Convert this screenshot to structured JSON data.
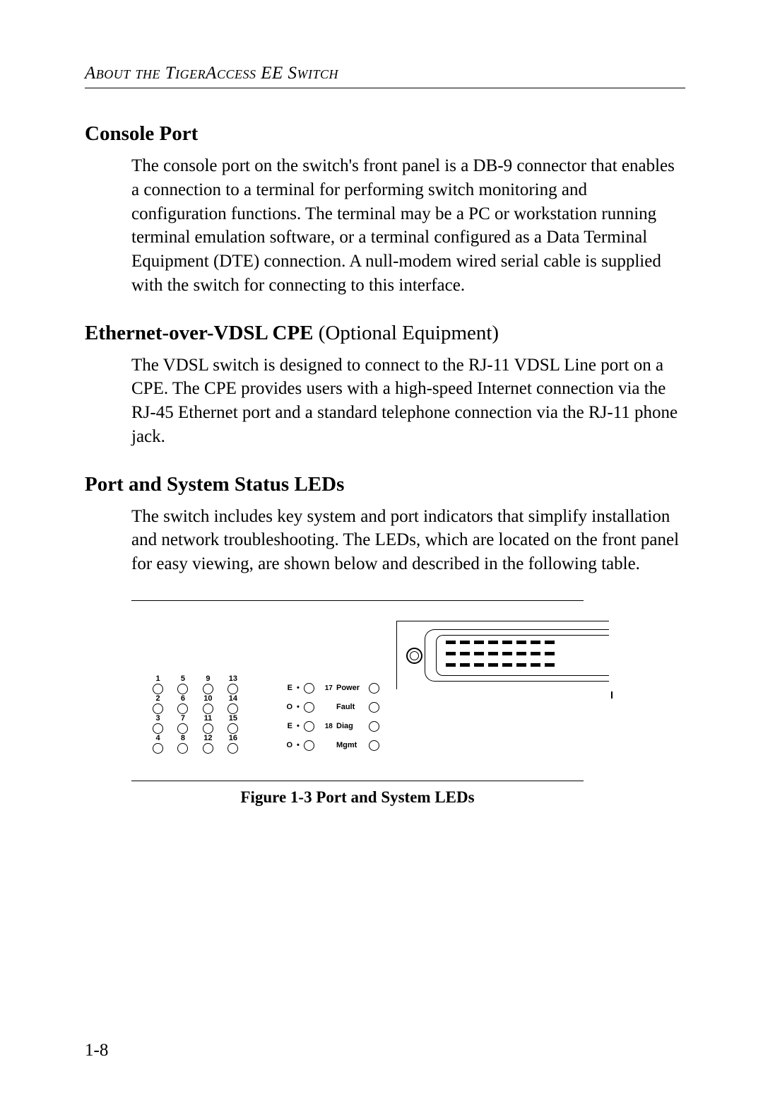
{
  "page": {
    "running_head": "About the TigerAccess EE Switch",
    "page_number": "1-8"
  },
  "sections": {
    "console": {
      "heading": "Console Port",
      "body": "The console port on the switch's front panel is a DB-9 connector that enables a connection to a terminal for performing switch monitoring and configuration functions. The terminal may be a PC or workstation running terminal emulation software, or a terminal configured as a Data Terminal Equipment (DTE) connection. A null-modem wired serial cable is supplied with the switch for connecting to this interface."
    },
    "cpe": {
      "heading_bold": "Ethernet-over-VDSL CPE",
      "heading_rest": " (Optional Equipment)",
      "body": "The VDSL switch is designed to connect to the RJ-11 VDSL Line port on a CPE. The CPE provides users with a high-speed Internet connection via the RJ-45 Ethernet port and a standard telephone connection via the RJ-11 phone jack."
    },
    "leds": {
      "heading": "Port and System Status LEDs",
      "body": "The switch includes key system and port indicators that simplify installation and network troubleshooting. The LEDs, which are located on the front panel for easy viewing, are shown below and described in the following table.",
      "caption": "Figure 1-3  Port and System LEDs"
    }
  },
  "diagram": {
    "type": "schematic",
    "background_color": "#ffffff",
    "stroke_color": "#000000",
    "font_family": "Arial",
    "label_fontsize_pt": 8,
    "port_columns": [
      [
        "1",
        "2",
        "3",
        "4"
      ],
      [
        "5",
        "6",
        "7",
        "8"
      ],
      [
        "9",
        "10",
        "11",
        "12"
      ],
      [
        "13",
        "14",
        "15",
        "16"
      ]
    ],
    "eo_rows": [
      {
        "lbl": "E",
        "dot": "•",
        "sub": "17"
      },
      {
        "lbl": "O",
        "dot": "•",
        "sub": ""
      },
      {
        "lbl": "E",
        "dot": "•",
        "sub": "18"
      },
      {
        "lbl": "O",
        "dot": "•",
        "sub": ""
      }
    ],
    "system_leds": [
      "Power",
      "Fault",
      "Diag",
      "Mgmt"
    ],
    "connector": {
      "pin_rows": 3,
      "pins_per_row": 8
    }
  }
}
